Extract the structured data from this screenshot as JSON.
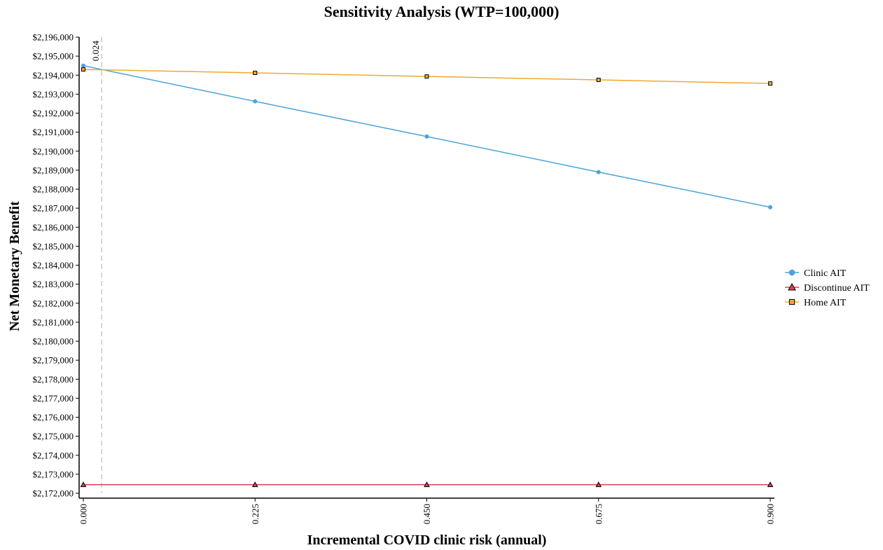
{
  "chart_data": {
    "type": "line",
    "title": "Sensitivity Analysis (WTP=100,000)",
    "xlabel": "Incremental COVID clinic risk (annual)",
    "ylabel": "Net Monetary Benefit",
    "x": [
      0.0,
      0.225,
      0.45,
      0.675,
      0.9
    ],
    "x_tick_labels": [
      "0.000",
      "0.225",
      "0.450",
      "0.675",
      "0.900"
    ],
    "xlim": [
      0,
      0.9
    ],
    "ylim": [
      2172000,
      2196000
    ],
    "y_tick_values": [
      2172000,
      2173000,
      2174000,
      2175000,
      2176000,
      2177000,
      2178000,
      2179000,
      2180000,
      2181000,
      2182000,
      2183000,
      2184000,
      2185000,
      2186000,
      2187000,
      2188000,
      2189000,
      2190000,
      2191000,
      2192000,
      2193000,
      2194000,
      2195000,
      2196000
    ],
    "y_tick_labels": [
      "$2,172,000",
      "$2,173,000",
      "$2,174,000",
      "$2,175,000",
      "$2,176,000",
      "$2,177,000",
      "$2,178,000",
      "$2,179,000",
      "$2,180,000",
      "$2,181,000",
      "$2,182,000",
      "$2,183,000",
      "$2,184,000",
      "$2,185,000",
      "$2,186,000",
      "$2,187,000",
      "$2,188,000",
      "$2,189,000",
      "$2,190,000",
      "$2,191,000",
      "$2,192,000",
      "$2,193,000",
      "$2,194,000",
      "$2,195,000",
      "$2,196,000"
    ],
    "grid": false,
    "legend_position": "right",
    "series": [
      {
        "name": "Clinic AIT",
        "color": "#4ba3d9",
        "marker": "circle",
        "values": [
          2194500,
          2192620,
          2190770,
          2188900,
          2187050
        ]
      },
      {
        "name": "Discontinue AIT",
        "color": "#d9435a",
        "marker": "triangle",
        "values": [
          2172450,
          2172450,
          2172450,
          2172450,
          2172450
        ]
      },
      {
        "name": "Home AIT",
        "color": "#f0a830",
        "marker": "square",
        "values": [
          2194300,
          2194120,
          2193930,
          2193750,
          2193560
        ]
      }
    ],
    "threshold": {
      "x": 0.024,
      "label": "0.024"
    }
  }
}
